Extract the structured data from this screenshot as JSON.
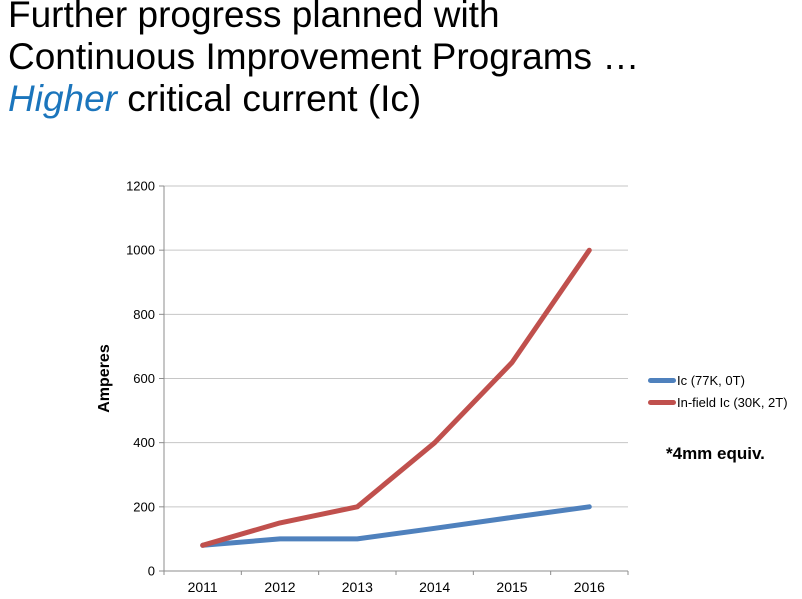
{
  "title": {
    "line1": "Further progress planned with",
    "line2": "Continuous Improvement Programs …",
    "line3_highlight": "Higher",
    "line3_rest": " critical current (Ic)",
    "highlight_color": "#1B75BC"
  },
  "chart_data": {
    "type": "line",
    "categories": [
      "2011",
      "2012",
      "2013",
      "2014",
      "2015",
      "2016"
    ],
    "series": [
      {
        "name": "Ic  (77K, 0T)",
        "color": "#4F81BD",
        "values": [
          80,
          100,
          100,
          133,
          167,
          200
        ]
      },
      {
        "name": "In-field Ic (30K, 2T)",
        "color": "#C0504D",
        "values": [
          80,
          150,
          200,
          400,
          650,
          1000
        ]
      }
    ],
    "title": "",
    "xlabel": "",
    "ylabel": "Amperes",
    "ylim": [
      0,
      1200
    ],
    "ytick_step": 200,
    "grid": true,
    "legend_position": "right",
    "axis_color": "#8C8C8C",
    "grid_color": "#C6C6C6",
    "label_color": "#000000"
  },
  "note": "*4mm equiv."
}
